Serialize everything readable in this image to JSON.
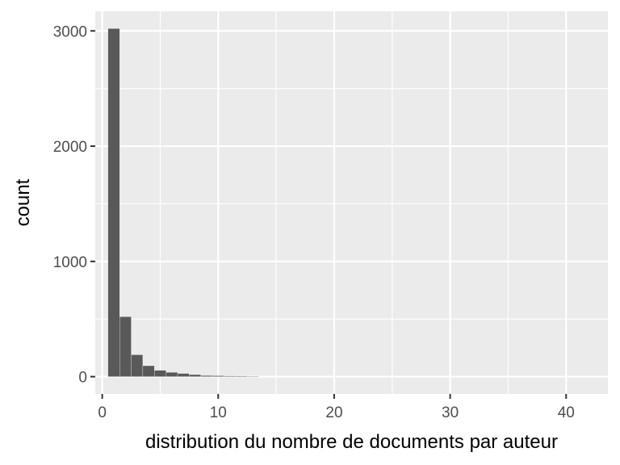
{
  "chart_data": {
    "type": "bar",
    "title": "",
    "xlabel": "distribution du nombre de documents par auteur",
    "ylabel": "count",
    "xlim": [
      -0.6,
      43.6
    ],
    "ylim": [
      -150,
      3170
    ],
    "x_ticks": [
      0,
      10,
      20,
      30,
      40
    ],
    "y_ticks": [
      0,
      1000,
      2000,
      3000
    ],
    "grid": true,
    "legend": "none",
    "bin_width": 1,
    "x": [
      1,
      2,
      3,
      4,
      5,
      6,
      7,
      8,
      9,
      10,
      11,
      12,
      13
    ],
    "values": [
      3020,
      520,
      190,
      95,
      55,
      38,
      28,
      18,
      10,
      8,
      6,
      5,
      4
    ],
    "colors": {
      "bar": "#595959",
      "panel": "#ebebeb",
      "grid": "#ffffff"
    }
  }
}
